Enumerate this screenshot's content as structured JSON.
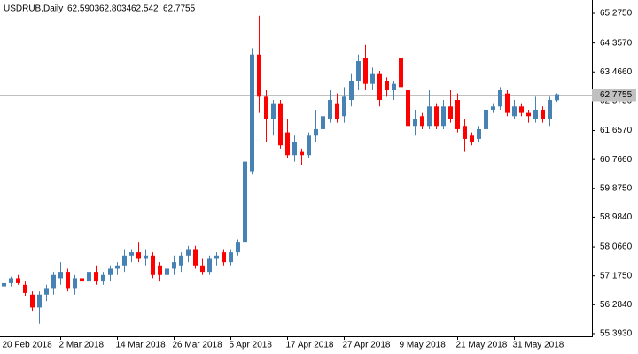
{
  "chart_data": {
    "type": "candlestick",
    "title": "USDRUB,Daily",
    "categories": [
      "20 Feb 2018",
      null,
      null,
      null,
      null,
      null,
      null,
      null,
      "2 Mar 2018",
      null,
      null,
      null,
      null,
      null,
      null,
      null,
      "14 Mar 2018",
      null,
      null,
      null,
      null,
      null,
      null,
      null,
      "26 Mar 2018",
      null,
      null,
      null,
      null,
      null,
      null,
      null,
      "5 Apr 2018",
      null,
      null,
      null,
      null,
      null,
      null,
      null,
      "17 Apr 2018",
      null,
      null,
      null,
      null,
      null,
      null,
      null,
      "27 Apr 2018",
      null,
      null,
      null,
      null,
      null,
      null,
      null,
      "9 May 2018",
      null,
      null,
      null,
      null,
      null,
      null,
      null,
      "21 May 2018",
      null,
      null,
      null,
      null,
      null,
      null,
      null,
      "31 May 2018",
      null,
      null,
      null,
      null,
      null,
      null
    ],
    "open": [
      56.85,
      56.95,
      57.1,
      56.9,
      56.6,
      56.2,
      56.6,
      56.8,
      57.1,
      57.3,
      56.8,
      57.1,
      57.0,
      57.3,
      57.0,
      57.2,
      57.4,
      57.5,
      57.8,
      57.9,
      57.7,
      57.8,
      57.5,
      57.2,
      57.4,
      57.5,
      57.8,
      58.0,
      57.5,
      57.3,
      57.7,
      57.9,
      57.6,
      57.9,
      58.2,
      60.4,
      64.0,
      62.7,
      62.0,
      62.5,
      61.6,
      60.9,
      61.0,
      60.9,
      61.5,
      61.7,
      62.0,
      62.5,
      62.1,
      62.6,
      63.2,
      63.9,
      63.1,
      63.4,
      63.2,
      62.9,
      63.9,
      62.9,
      61.8,
      62.1,
      61.8,
      62.4,
      61.8,
      62.4,
      62.6,
      61.8,
      61.5,
      61.4,
      61.7,
      62.3,
      62.4,
      62.8,
      62.1,
      62.4,
      62.2,
      62.0,
      62.3,
      62.0,
      62.5903
    ],
    "high": [
      57.05,
      57.15,
      57.2,
      57.0,
      56.7,
      56.7,
      56.9,
      57.3,
      57.6,
      57.4,
      57.2,
      57.2,
      57.4,
      57.5,
      57.3,
      57.5,
      57.6,
      58.0,
      58.0,
      58.2,
      58.0,
      57.9,
      57.6,
      57.6,
      57.8,
      57.9,
      58.1,
      58.1,
      57.7,
      57.8,
      57.9,
      58.0,
      58.0,
      58.3,
      60.8,
      64.2,
      65.2,
      62.9,
      62.6,
      62.6,
      62.0,
      61.5,
      61.1,
      61.6,
      62.3,
      62.2,
      62.9,
      62.8,
      63.0,
      63.4,
      64.0,
      64.3,
      63.6,
      63.5,
      63.3,
      63.2,
      64.1,
      63.0,
      62.3,
      62.2,
      62.9,
      62.5,
      62.6,
      62.9,
      62.8,
      62.0,
      61.6,
      61.8,
      62.6,
      62.5,
      63.0,
      62.9,
      62.6,
      62.5,
      62.3,
      62.7,
      62.4,
      62.7,
      62.8034
    ],
    "low": [
      56.75,
      56.85,
      56.9,
      56.55,
      56.1,
      55.7,
      56.4,
      56.6,
      56.9,
      56.7,
      56.6,
      56.9,
      56.9,
      56.9,
      56.9,
      57.0,
      57.2,
      57.3,
      57.6,
      57.6,
      57.5,
      57.1,
      57.0,
      57.0,
      57.2,
      57.3,
      57.6,
      57.4,
      57.2,
      57.2,
      57.5,
      57.5,
      57.5,
      57.8,
      58.1,
      60.3,
      62.2,
      61.3,
      61.5,
      61.1,
      60.8,
      60.7,
      60.6,
      60.8,
      61.3,
      61.6,
      61.9,
      61.9,
      61.9,
      62.4,
      62.9,
      62.9,
      62.9,
      62.4,
      62.7,
      62.6,
      62.9,
      61.7,
      61.5,
      61.7,
      61.7,
      61.7,
      61.7,
      61.9,
      61.6,
      61.0,
      61.2,
      61.3,
      61.6,
      62.2,
      62.3,
      62.1,
      62.0,
      62.1,
      61.9,
      61.9,
      61.9,
      61.8,
      62.542
    ],
    "close": [
      56.95,
      57.1,
      56.95,
      56.65,
      56.2,
      56.6,
      56.8,
      57.2,
      57.3,
      56.8,
      57.1,
      57.0,
      57.3,
      57.0,
      57.2,
      57.4,
      57.5,
      57.8,
      57.9,
      57.7,
      57.8,
      57.2,
      57.2,
      57.4,
      57.6,
      57.8,
      58.0,
      57.5,
      57.3,
      57.7,
      57.8,
      57.6,
      57.9,
      58.2,
      60.7,
      64.0,
      62.7,
      62.0,
      62.5,
      61.2,
      60.9,
      61.3,
      60.9,
      61.5,
      61.7,
      62.1,
      62.6,
      62.0,
      62.7,
      63.2,
      63.8,
      63.1,
      63.4,
      62.6,
      62.9,
      63.1,
      63.0,
      61.8,
      62.0,
      61.8,
      62.4,
      61.8,
      62.4,
      62.0,
      61.7,
      61.4,
      61.3,
      61.7,
      62.3,
      62.4,
      62.9,
      62.2,
      62.4,
      62.2,
      62.1,
      62.3,
      62.0,
      62.6,
      62.7755
    ],
    "up_color": "#4682b4",
    "down_color": "#ff0000",
    "price_line_color": "#c0c0c0",
    "ylim": [
      55.31,
      65.63
    ],
    "yticks": [
      {
        "value": 65.275,
        "label": "65.2750"
      },
      {
        "value": 64.357,
        "label": "64.3570"
      },
      {
        "value": 63.466,
        "label": "63.4660"
      },
      {
        "value": 62.575,
        "label": "62.5750"
      },
      {
        "value": 61.657,
        "label": "61.6570"
      },
      {
        "value": 60.766,
        "label": "60.7660"
      },
      {
        "value": 59.875,
        "label": "59.8750"
      },
      {
        "value": 58.984,
        "label": "58.9840"
      },
      {
        "value": 58.066,
        "label": "58.0660"
      },
      {
        "value": 57.175,
        "label": "57.1750"
      },
      {
        "value": 56.284,
        "label": "56.2840"
      },
      {
        "value": 55.393,
        "label": "55.3930"
      }
    ],
    "grid": false
  }
}
